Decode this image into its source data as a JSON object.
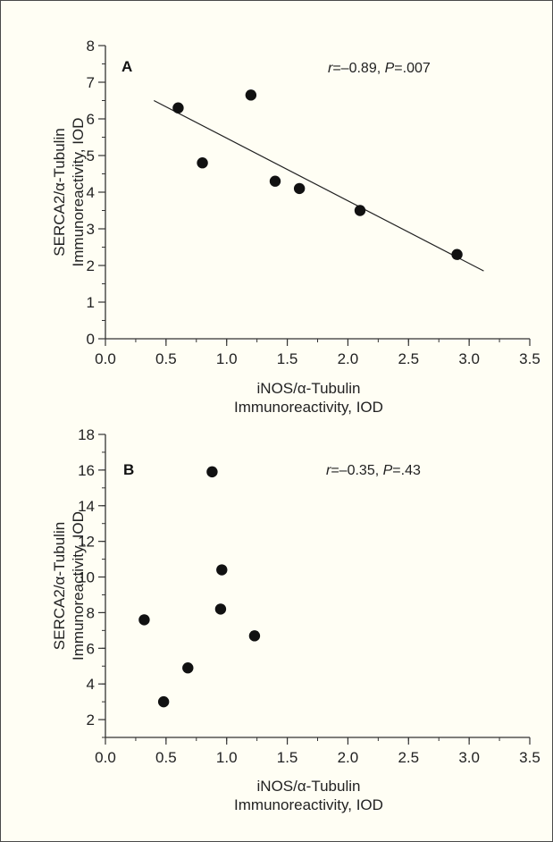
{
  "chart_data": [
    {
      "type": "scatter",
      "panel_label": "A",
      "annotation": {
        "r_label": "r",
        "r_value": "=–0.89, ",
        "p_label": "P",
        "p_value": "=.007"
      },
      "xlabel": [
        "iNOS/α-Tubulin",
        "Immunoreactivity, IOD"
      ],
      "ylabel": [
        "SERCA2/α-Tubulin",
        "Immunoreactivity, IOD"
      ],
      "xlim": [
        0,
        3.5
      ],
      "ylim": [
        0,
        8
      ],
      "x_ticks": [
        "0.0",
        "0.5",
        "1.0",
        "1.5",
        "2.0",
        "2.5",
        "3.0",
        "3.5"
      ],
      "y_ticks": [
        "0",
        "1",
        "2",
        "3",
        "4",
        "5",
        "6",
        "7",
        "8"
      ],
      "x_tick_values": [
        0,
        0.5,
        1.0,
        1.5,
        2.0,
        2.5,
        3.0,
        3.5
      ],
      "y_tick_values": [
        0,
        1,
        2,
        3,
        4,
        5,
        6,
        7,
        8
      ],
      "x_minor_step": 0.25,
      "y_minor_step": 0.5,
      "points": [
        {
          "x": 0.6,
          "y": 6.3
        },
        {
          "x": 0.8,
          "y": 4.8
        },
        {
          "x": 1.2,
          "y": 6.65
        },
        {
          "x": 1.4,
          "y": 4.3
        },
        {
          "x": 1.6,
          "y": 4.1
        },
        {
          "x": 2.1,
          "y": 3.5
        },
        {
          "x": 2.9,
          "y": 2.3
        }
      ],
      "regression_line": {
        "x1": 0.4,
        "y1": 6.5,
        "x2": 3.12,
        "y2": 1.85
      }
    },
    {
      "type": "scatter",
      "panel_label": "B",
      "annotation": {
        "r_label": "r",
        "r_value": "=–0.35,  ",
        "p_label": "P",
        "p_value": "=.43"
      },
      "xlabel": [
        "iNOS/α-Tubulin",
        "Immunoreactivity, IOD"
      ],
      "ylabel": [
        "SERCA2/α-Tubulin",
        "Immunoreactivity, IOD"
      ],
      "xlim": [
        0,
        3.5
      ],
      "ylim": [
        1,
        18
      ],
      "x_ticks": [
        "0.0",
        "0.5",
        "1.0",
        "1.5",
        "2.0",
        "2.5",
        "3.0",
        "3.5"
      ],
      "y_ticks": [
        "2",
        "4",
        "6",
        "8",
        "10",
        "12",
        "14",
        "16",
        "18"
      ],
      "x_tick_values": [
        0,
        0.5,
        1.0,
        1.5,
        2.0,
        2.5,
        3.0,
        3.5
      ],
      "y_tick_values": [
        2,
        4,
        6,
        8,
        10,
        12,
        14,
        16,
        18
      ],
      "x_minor_step": 0.25,
      "y_minor_step": 1,
      "points": [
        {
          "x": 0.32,
          "y": 7.6
        },
        {
          "x": 0.48,
          "y": 3.0
        },
        {
          "x": 0.68,
          "y": 4.9
        },
        {
          "x": 0.88,
          "y": 15.9
        },
        {
          "x": 0.95,
          "y": 8.2
        },
        {
          "x": 0.96,
          "y": 10.4
        },
        {
          "x": 1.23,
          "y": 6.7
        }
      ]
    }
  ]
}
